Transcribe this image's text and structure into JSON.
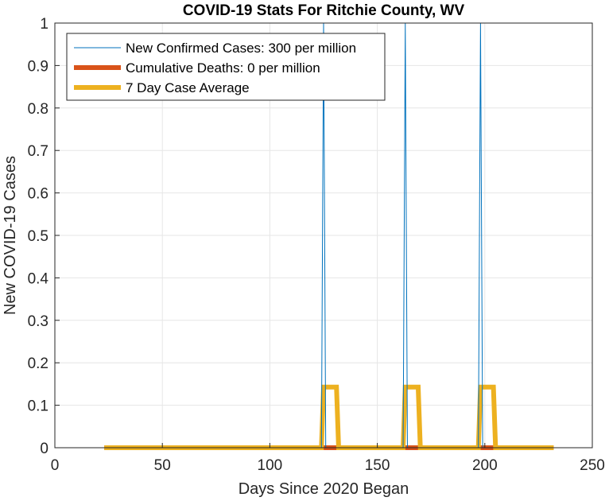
{
  "chart_data": {
    "type": "line",
    "title": "COVID-19 Stats For Ritchie County, WV",
    "xlabel": "Days Since 2020 Began",
    "ylabel": "New COVID-19 Cases",
    "xlim": [
      0,
      250
    ],
    "ylim": [
      0,
      1
    ],
    "xticks": [
      0,
      50,
      100,
      150,
      200,
      250
    ],
    "yticks": [
      0,
      0.1,
      0.2,
      0.3,
      0.4,
      0.5,
      0.6,
      0.7,
      0.8,
      0.9,
      1
    ],
    "grid": true,
    "legend_position": "top-left",
    "series": [
      {
        "name": "New Confirmed Cases: 300 per million",
        "color": "#0072BD",
        "x": [
          23,
          124,
          125,
          126,
          162,
          163,
          164,
          197,
          198,
          199,
          232
        ],
        "y": [
          0,
          0,
          1,
          0,
          0,
          1,
          0,
          0,
          1,
          0,
          0
        ]
      },
      {
        "name": "Cumulative Deaths: 0 per million",
        "color": "#D95319",
        "x": [
          23,
          232
        ],
        "y": [
          0,
          0
        ]
      },
      {
        "name": "7 Day Case Average",
        "color": "#EDB120",
        "x": [
          23,
          124,
          125,
          131,
          132,
          162,
          163,
          169,
          170,
          197,
          198,
          204,
          205,
          232
        ],
        "y": [
          0,
          0,
          0.1429,
          0.1429,
          0,
          0,
          0.1429,
          0.1429,
          0,
          0,
          0.1429,
          0.1429,
          0,
          0
        ]
      }
    ]
  }
}
